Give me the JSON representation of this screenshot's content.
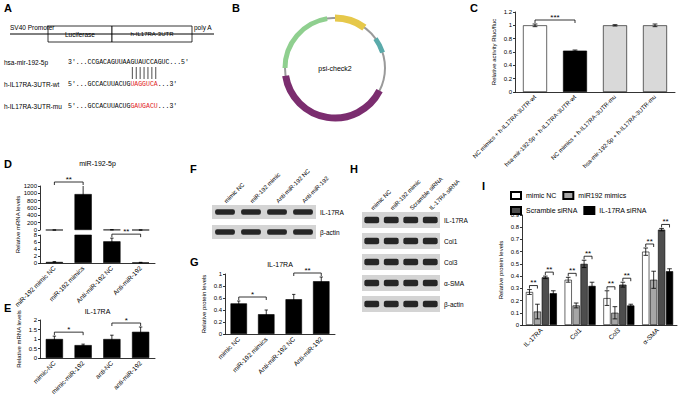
{
  "diagram": {
    "label": "A",
    "promoter": "SV40 Promoter",
    "reporter": "Luciferase",
    "utr": "h-IL17RA-3UTR",
    "polya": "poly A",
    "color": "#e0201b",
    "sequences": [
      {
        "name": "hsa-mir-192-5p",
        "parts": [
          "3'...CCGACAGUUAAGUAUCCAGUC...5'"
        ]
      },
      {
        "name": "h-IL17RA-3UTR-wt",
        "parts": [
          "5'...GCCACUUACUG",
          "UAGGUCA",
          "...3'"
        ]
      },
      {
        "name": "h-IL17RA-3UTR-mu",
        "parts": [
          "5'...GCCACUUACUG",
          "GAUGACU",
          "...3'"
        ]
      }
    ]
  },
  "plasmid": {
    "label": "B",
    "name": "psi-check2"
  },
  "blots": [
    {
      "label": "F",
      "lanes": [
        "mimic NC",
        "miR-192 mimic",
        "Anti-miR-192 NC",
        "Anti-miR-192"
      ],
      "bands": [
        "IL-17RA",
        "β-actin"
      ]
    },
    {
      "label": "H",
      "lanes": [
        "mimic NC",
        "miR-192 mimic",
        "Scramble siRNA",
        "IL-17RA siRNA"
      ],
      "bands": [
        "IL-17RA",
        "Col1",
        "Col3",
        "α-SMA",
        "β-actin"
      ]
    }
  ],
  "chart_data": [
    {
      "label": "C",
      "type": "bar",
      "grid": false,
      "ylabel": "Relative activity Rluc/fluc",
      "categories": [
        "NC mimics + h-IL17RA-3UTR-wt",
        "hsa-mir-192-5p + h-IL17RA-3UTR-wt",
        "NC mimics + h-IL17RA-3UTR-mu",
        "hsa-mir-192-5p + h-IL17RA-3UTR-mu"
      ],
      "values": [
        1,
        0.62,
        1,
        1
      ],
      "errors": [
        0.02,
        0.01,
        0.01,
        0.02
      ],
      "colors": [
        "#ffffff",
        "#000000",
        "#d9d9d9",
        "#d9d9d9"
      ],
      "ylim": [
        0,
        1.2
      ],
      "yticks": [
        0,
        0.2,
        0.4,
        0.6,
        0.8,
        1,
        1.2
      ],
      "significance": [
        {
          "from": "NC mimics + h-IL17RA-3UTR-wt",
          "to": "hsa-mir-192-5p + h-IL17RA-3UTR-wt",
          "label": "***"
        }
      ]
    },
    {
      "label": "D",
      "type": "bar",
      "grid": false,
      "title": "miR-192-5p",
      "ylabel": "Relative mRNA levels",
      "categories": [
        "miR-192 mimic NC",
        "miR-192 mimics",
        "Anti-miR-192 NC",
        "Anti-miR-192"
      ],
      "values": [
        0.3,
        980,
        6.2,
        0.15
      ],
      "errors": [
        0.1,
        240,
        0.9,
        0.05
      ],
      "color": "#000000",
      "segments": [
        {
          "ylim": [
            0,
            8
          ],
          "yticks": [
            0,
            2,
            4,
            6,
            8
          ]
        },
        {
          "ylim": [
            0,
            1200
          ],
          "yticks": [
            0,
            200,
            400,
            600,
            800,
            1000,
            1200
          ]
        }
      ],
      "significance": [
        {
          "from": "miR-192 mimic NC",
          "to": "miR-192 mimics",
          "label": "**"
        },
        {
          "from": "Anti-miR-192 NC",
          "to": "Anti-miR-192",
          "label": "**"
        }
      ]
    },
    {
      "label": "E",
      "type": "bar",
      "grid": false,
      "title": "IL-17RA",
      "ylabel": "Relative mRNA levels",
      "categories": [
        "mimic-NC",
        "mimic-miR-192",
        "anti-NC",
        "anti-miR-192"
      ],
      "values": [
        1.0,
        0.68,
        1.0,
        1.38
      ],
      "errors": [
        0.15,
        0.05,
        0.2,
        0.25
      ],
      "color": "#000000",
      "ylim": [
        0,
        2
      ],
      "yticks": [
        0,
        0.5,
        1,
        1.5,
        2
      ],
      "significance": [
        {
          "from": "mimic-NC",
          "to": "mimic-miR-192",
          "label": "*"
        },
        {
          "from": "anti-NC",
          "to": "anti-miR-192",
          "label": "*"
        }
      ]
    },
    {
      "label": "G",
      "type": "bar",
      "grid": false,
      "title": "IL-17RA",
      "ylabel": "Relative protein levels",
      "categories": [
        "mimic NC",
        "miR-192 mimics",
        "Anti-miR-192 NC",
        "Anti-miR-192"
      ],
      "values": [
        0.51,
        0.33,
        0.58,
        0.88
      ],
      "errors": [
        0.04,
        0.07,
        0.08,
        0.07
      ],
      "color": "#000000",
      "ylim": [
        0,
        1
      ],
      "yticks": [
        0,
        0.2,
        0.4,
        0.6,
        0.8,
        1
      ],
      "significance": [
        {
          "from": "mimic NC",
          "to": "miR-192 mimics",
          "label": "*"
        },
        {
          "from": "Anti-miR-192 NC",
          "to": "Anti-miR-192",
          "label": "**"
        }
      ]
    },
    {
      "label": "I",
      "type": "bar",
      "grid": false,
      "legend": "top",
      "ylabel": "Relative protein levels",
      "categories": [
        "IL-17RA",
        "Col1",
        "Col3",
        "α-SMA"
      ],
      "series": [
        {
          "name": "mimic NC",
          "color": "#ffffff",
          "values": [
            0.27,
            0.37,
            0.22,
            0.6
          ],
          "errors": [
            0.02,
            0.02,
            0.06,
            0.03
          ]
        },
        {
          "name": "miR192 mimics",
          "color": "#a6a6a6",
          "values": [
            0.11,
            0.16,
            0.1,
            0.37
          ],
          "errors": [
            0.06,
            0.02,
            0.05,
            0.07
          ]
        },
        {
          "name": "Scramble siRNA",
          "color": "#4d4d4d",
          "values": [
            0.39,
            0.5,
            0.33,
            0.78
          ],
          "errors": [
            0.01,
            0.03,
            0.02,
            0.01
          ]
        },
        {
          "name": "IL-17RA siRNA",
          "color": "#000000",
          "values": [
            0.26,
            0.32,
            0.16,
            0.44
          ],
          "errors": [
            0.02,
            0.03,
            0.01,
            0.02
          ]
        }
      ],
      "ylim": [
        0,
        0.9
      ],
      "yticks": [
        0,
        0.1,
        0.2,
        0.3,
        0.4,
        0.5,
        0.6,
        0.7,
        0.8,
        0.9
      ],
      "significance": [
        {
          "category": "IL-17RA",
          "from": "mimic NC",
          "to": "miR192 mimics",
          "label": "**"
        },
        {
          "category": "IL-17RA",
          "from": "Scramble siRNA",
          "to": "IL-17RA siRNA",
          "label": "**"
        },
        {
          "category": "Col1",
          "from": "mimic NC",
          "to": "miR192 mimics",
          "label": "**"
        },
        {
          "category": "Col1",
          "from": "Scramble siRNA",
          "to": "IL-17RA siRNA",
          "label": "**"
        },
        {
          "category": "Col3",
          "from": "mimic NC",
          "to": "miR192 mimics",
          "label": "**"
        },
        {
          "category": "Col3",
          "from": "Scramble siRNA",
          "to": "IL-17RA siRNA",
          "label": "**"
        },
        {
          "category": "α-SMA",
          "from": "mimic NC",
          "to": "miR192 mimics",
          "label": "**"
        },
        {
          "category": "α-SMA",
          "from": "Scramble siRNA",
          "to": "IL-17RA siRNA",
          "label": "**"
        }
      ]
    }
  ]
}
